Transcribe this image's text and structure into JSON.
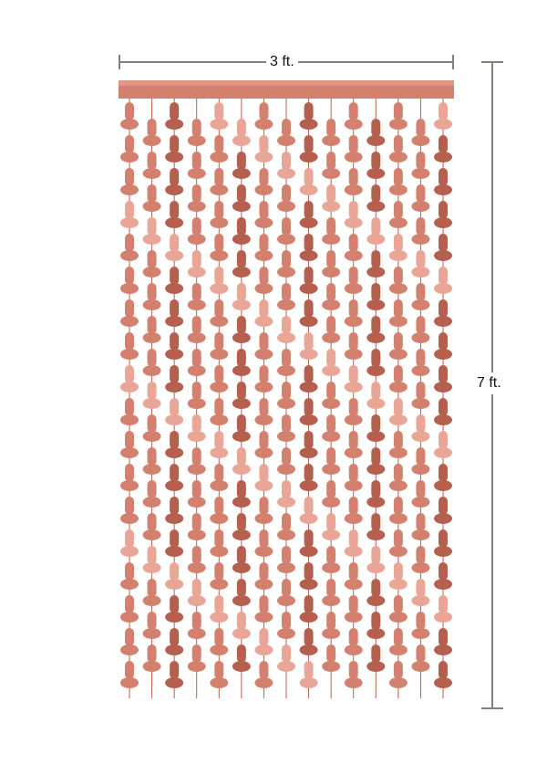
{
  "dimensions": {
    "width_label": "3 ft.",
    "height_label": "7 ft."
  },
  "curtain": {
    "color": "#d4806e",
    "highlight_color": "#e9a595",
    "shadow_color": "#b5604f",
    "strands": 15
  },
  "dimension_line_color": "#8a7e7a"
}
